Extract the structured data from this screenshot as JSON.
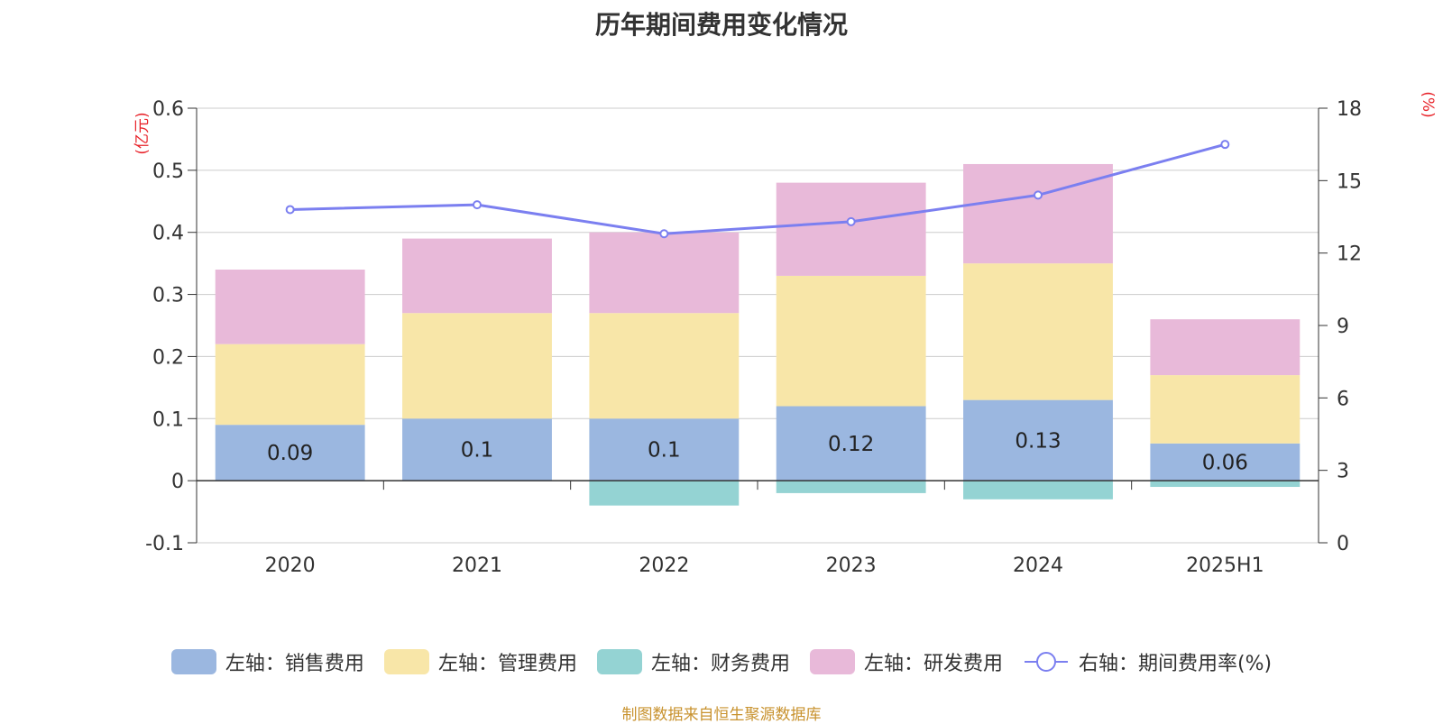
{
  "title": "历年期间费用变化情况",
  "footer": "制图数据来自恒生聚源数据库",
  "chart_data": {
    "type": "bar",
    "stacked": true,
    "categories": [
      "2020",
      "2021",
      "2022",
      "2023",
      "2024",
      "2025H1"
    ],
    "left_axis": {
      "unit": "(亿元)",
      "ylim": [
        -0.1,
        0.6
      ],
      "ticks": [
        "-0.1",
        "0",
        "0.1",
        "0.2",
        "0.3",
        "0.4",
        "0.5",
        "0.6"
      ]
    },
    "right_axis": {
      "unit": "(%)",
      "ylim": [
        0,
        18
      ],
      "ticks": [
        "0",
        "3",
        "6",
        "9",
        "12",
        "15",
        "18"
      ]
    },
    "series": [
      {
        "name": "左轴：销售费用",
        "axis": "left",
        "color": "#9bb7e0",
        "values": [
          0.09,
          0.1,
          0.1,
          0.12,
          0.13,
          0.06
        ],
        "labels": [
          "0.09",
          "0.1",
          "0.1",
          "0.12",
          "0.13",
          "0.06"
        ]
      },
      {
        "name": "左轴：管理费用",
        "axis": "left",
        "color": "#f8e6a8",
        "values": [
          0.13,
          0.17,
          0.17,
          0.21,
          0.22,
          0.11
        ]
      },
      {
        "name": "左轴：财务费用",
        "axis": "left",
        "color": "#94d3d3",
        "values": [
          0.0,
          0.0,
          -0.04,
          -0.02,
          -0.03,
          -0.01
        ]
      },
      {
        "name": "左轴：研发费用",
        "axis": "left",
        "color": "#e8b9d9",
        "values": [
          0.12,
          0.12,
          0.13,
          0.15,
          0.16,
          0.09
        ]
      },
      {
        "name": "右轴：期间费用率(%)",
        "axis": "right",
        "type": "line",
        "color": "#7b7ff0",
        "values": [
          13.8,
          14.0,
          12.8,
          13.3,
          14.4,
          16.5
        ]
      }
    ],
    "grid": true,
    "legend_position": "bottom"
  }
}
